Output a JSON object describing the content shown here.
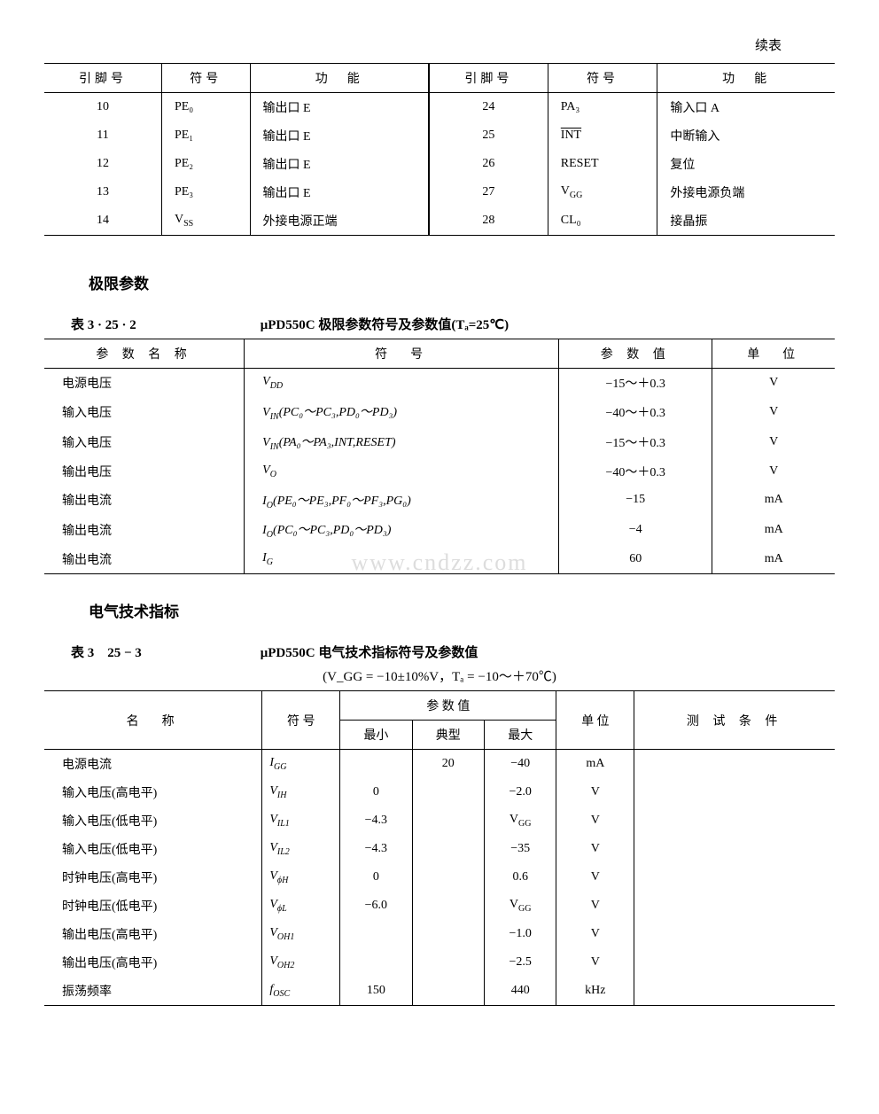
{
  "cont_label": "续表",
  "table1": {
    "headers": [
      "引脚号",
      "符号",
      "功　能",
      "引脚号",
      "符号",
      "功　能"
    ],
    "rows": [
      {
        "p1": "10",
        "s1": "PE₀",
        "f1": "输出口 E",
        "p2": "24",
        "s2": "PA₃",
        "f2": "输入口 A"
      },
      {
        "p1": "11",
        "s1": "PE₁",
        "f1": "输出口 E",
        "p2": "25",
        "s2": "INT",
        "f2": "中断输入",
        "ov": true
      },
      {
        "p1": "12",
        "s1": "PE₂",
        "f1": "输出口 E",
        "p2": "26",
        "s2": "RESET",
        "f2": "复位"
      },
      {
        "p1": "13",
        "s1": "PE₃",
        "f1": "输出口 E",
        "p2": "27",
        "s2": "V_GG",
        "f2": "外接电源负端"
      },
      {
        "p1": "14",
        "s1": "V_SS",
        "f1": "外接电源正端",
        "p2": "28",
        "s2": "CL₀",
        "f2": "接晶振"
      }
    ]
  },
  "section2": "极限参数",
  "cap2_no": "表 3 · 25 · 2",
  "cap2_title": "μPD550C 极限参数符号及参数值(Tₐ=25℃)",
  "table2": {
    "headers": [
      "参 数 名 称",
      "符　号",
      "参 数 值",
      "单　位"
    ],
    "rows": [
      {
        "n": "电源电压",
        "s": "V_DD",
        "v": "−15～＋0.3",
        "u": "V"
      },
      {
        "n": "输入电压",
        "s": "V_IN(PC₀～PC₃,PD₀～PD₃)",
        "v": "−40～＋0.3",
        "u": "V"
      },
      {
        "n": "输入电压",
        "s": "V_IN(PA₀～PA₃,INT,RESET)",
        "v": "−15～＋0.3",
        "u": "V"
      },
      {
        "n": "输出电压",
        "s": "V_O",
        "v": "−40～＋0.3",
        "u": "V"
      },
      {
        "n": "输出电流",
        "s": "I_O(PE₀～PE₃,PF₀～PF₃,PG₀)",
        "v": "−15",
        "u": "mA"
      },
      {
        "n": "输出电流",
        "s": "I_O(PC₀～PC₃,PD₀～PD₃)",
        "v": "−4",
        "u": "mA"
      },
      {
        "n": "输出电流",
        "s": "I_G",
        "v": "60",
        "u": "mA"
      }
    ]
  },
  "watermark": "www.cndzz.com",
  "section3": "电气技术指标",
  "cap3_no": "表 3　25 − 3",
  "cap3_title": "μPD550C 电气技术指标符号及参数值",
  "cap3_sub": "(V_GG = −10±10%V，Tₐ = −10～＋70℃)",
  "table3": {
    "h_name": "名　称",
    "h_sym": "符 号",
    "h_val": "参 数 值",
    "h_min": "最小",
    "h_typ": "典型",
    "h_max": "最大",
    "h_unit": "单 位",
    "h_cond": "测 试 条 件",
    "rows": [
      {
        "n": "电源电流",
        "s": "I_GG",
        "min": "",
        "typ": "20",
        "max": "−40",
        "u": "mA",
        "c": ""
      },
      {
        "n": "输入电压(高电平)",
        "s": "V_IH",
        "min": "0",
        "typ": "",
        "max": "−2.0",
        "u": "V",
        "c": ""
      },
      {
        "n": "输入电压(低电平)",
        "s": "V_IL1",
        "min": "−4.3",
        "typ": "",
        "max": "V_GG",
        "u": "V",
        "c": ""
      },
      {
        "n": "输入电压(低电平)",
        "s": "V_IL2",
        "min": "−4.3",
        "typ": "",
        "max": "−35",
        "u": "V",
        "c": ""
      },
      {
        "n": "时钟电压(高电平)",
        "s": "V_ϕH",
        "min": "0",
        "typ": "",
        "max": "0.6",
        "u": "V",
        "c": ""
      },
      {
        "n": "时钟电压(低电平)",
        "s": "V_ϕL",
        "min": "−6.0",
        "typ": "",
        "max": "V_GG",
        "u": "V",
        "c": ""
      },
      {
        "n": "输出电压(高电平)",
        "s": "V_OH1",
        "min": "",
        "typ": "",
        "max": "−1.0",
        "u": "V",
        "c": ""
      },
      {
        "n": "输出电压(高电平)",
        "s": "V_OH2",
        "min": "",
        "typ": "",
        "max": "−2.5",
        "u": "V",
        "c": ""
      },
      {
        "n": "振荡频率",
        "s": "f_OSC",
        "min": "150",
        "typ": "",
        "max": "440",
        "u": "kHz",
        "c": ""
      }
    ]
  }
}
